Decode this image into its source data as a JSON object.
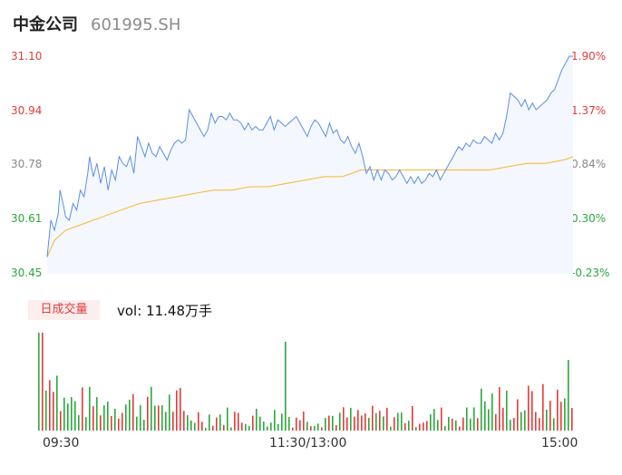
{
  "header": {
    "name": "中金公司",
    "code": "601995.SH"
  },
  "axis": {
    "price_labels": [
      "31.10",
      "30.94",
      "30.78",
      "30.61",
      "30.45"
    ],
    "pct_labels": [
      "1.90%",
      "1.37%",
      "0.84%",
      "0.30%",
      "-0.23%"
    ]
  },
  "volume": {
    "tab_label": "日成交量",
    "info": "vol: 11.48万手"
  },
  "time_labels": [
    "09:30",
    "11:30/13:00",
    "15:00"
  ],
  "colors": {
    "price_line": "#5b8ee6",
    "avg_line": "#f5b731",
    "up": "#e23b3b",
    "down": "#2aa83c",
    "neutral": "#888888",
    "area_fill": "#f4f7fd"
  },
  "chart_data": {
    "type": "line",
    "ylim": [
      30.45,
      31.1
    ],
    "pct_range": [
      -0.23,
      1.9
    ],
    "price_series": [
      [
        0,
        30.5
      ],
      [
        2,
        30.61
      ],
      [
        4,
        30.58
      ],
      [
        6,
        30.63
      ],
      [
        7,
        30.7
      ],
      [
        9,
        30.65
      ],
      [
        10,
        30.62
      ],
      [
        12,
        30.61
      ],
      [
        14,
        30.66
      ],
      [
        16,
        30.64
      ],
      [
        18,
        30.7
      ],
      [
        20,
        30.68
      ],
      [
        22,
        30.75
      ],
      [
        23,
        30.8
      ],
      [
        25,
        30.74
      ],
      [
        27,
        30.78
      ],
      [
        29,
        30.72
      ],
      [
        31,
        30.77
      ],
      [
        33,
        30.7
      ],
      [
        35,
        30.76
      ],
      [
        37,
        30.73
      ],
      [
        39,
        30.8
      ],
      [
        41,
        30.78
      ],
      [
        43,
        30.77
      ],
      [
        45,
        30.8
      ],
      [
        47,
        30.75
      ],
      [
        49,
        30.86
      ],
      [
        51,
        30.83
      ],
      [
        53,
        30.8
      ],
      [
        55,
        30.84
      ],
      [
        57,
        30.81
      ],
      [
        59,
        30.8
      ],
      [
        61,
        30.83
      ],
      [
        63,
        30.81
      ],
      [
        65,
        30.79
      ],
      [
        67,
        30.82
      ],
      [
        69,
        30.84
      ],
      [
        71,
        30.85
      ],
      [
        73,
        30.84
      ],
      [
        75,
        30.85
      ],
      [
        77,
        30.94
      ],
      [
        79,
        30.92
      ],
      [
        81,
        30.9
      ],
      [
        83,
        30.88
      ],
      [
        85,
        30.86
      ],
      [
        87,
        30.88
      ],
      [
        89,
        30.93
      ],
      [
        91,
        30.9
      ],
      [
        93,
        30.92
      ],
      [
        95,
        30.92
      ],
      [
        97,
        30.91
      ],
      [
        99,
        30.93
      ],
      [
        101,
        30.91
      ],
      [
        103,
        30.91
      ],
      [
        105,
        30.9
      ],
      [
        107,
        30.88
      ],
      [
        109,
        30.9
      ],
      [
        111,
        30.88
      ],
      [
        113,
        30.89
      ],
      [
        115,
        30.88
      ],
      [
        117,
        30.88
      ],
      [
        119,
        30.9
      ],
      [
        121,
        30.92
      ],
      [
        123,
        30.88
      ],
      [
        125,
        30.91
      ],
      [
        127,
        30.9
      ],
      [
        129,
        30.89
      ],
      [
        131,
        30.9
      ],
      [
        133,
        30.91
      ],
      [
        135,
        30.92
      ],
      [
        137,
        30.9
      ],
      [
        139,
        30.88
      ],
      [
        141,
        30.86
      ],
      [
        143,
        30.89
      ],
      [
        145,
        30.91
      ],
      [
        147,
        30.9
      ],
      [
        149,
        30.88
      ],
      [
        151,
        30.86
      ],
      [
        153,
        30.9
      ],
      [
        155,
        30.87
      ],
      [
        157,
        30.88
      ],
      [
        159,
        30.85
      ],
      [
        161,
        30.84
      ],
      [
        163,
        30.86
      ],
      [
        165,
        30.83
      ],
      [
        167,
        30.81
      ],
      [
        169,
        30.84
      ],
      [
        171,
        30.8
      ],
      [
        173,
        30.75
      ],
      [
        175,
        30.77
      ],
      [
        177,
        30.73
      ],
      [
        179,
        30.76
      ],
      [
        181,
        30.73
      ],
      [
        183,
        30.76
      ],
      [
        185,
        30.75
      ],
      [
        187,
        30.73
      ],
      [
        189,
        30.74
      ],
      [
        191,
        30.76
      ],
      [
        193,
        30.74
      ],
      [
        195,
        30.72
      ],
      [
        197,
        30.74
      ],
      [
        199,
        30.72
      ],
      [
        201,
        30.74
      ],
      [
        203,
        30.72
      ],
      [
        205,
        30.73
      ],
      [
        207,
        30.75
      ],
      [
        209,
        30.74
      ],
      [
        211,
        30.76
      ],
      [
        213,
        30.73
      ],
      [
        215,
        30.75
      ],
      [
        217,
        30.77
      ],
      [
        219,
        30.79
      ],
      [
        221,
        30.81
      ],
      [
        223,
        30.83
      ],
      [
        225,
        30.82
      ],
      [
        227,
        30.84
      ],
      [
        229,
        30.83
      ],
      [
        231,
        30.85
      ],
      [
        233,
        30.84
      ],
      [
        235,
        30.84
      ],
      [
        237,
        30.86
      ],
      [
        239,
        30.85
      ],
      [
        241,
        30.84
      ],
      [
        243,
        30.87
      ],
      [
        245,
        30.85
      ],
      [
        247,
        30.87
      ],
      [
        249,
        30.92
      ],
      [
        251,
        30.99
      ],
      [
        253,
        30.98
      ],
      [
        255,
        30.97
      ],
      [
        257,
        30.95
      ],
      [
        259,
        30.97
      ],
      [
        261,
        30.94
      ],
      [
        263,
        30.96
      ],
      [
        265,
        30.94
      ],
      [
        267,
        30.95
      ],
      [
        269,
        30.96
      ],
      [
        271,
        30.97
      ],
      [
        273,
        30.99
      ],
      [
        275,
        31.0
      ],
      [
        277,
        31.03
      ],
      [
        279,
        31.06
      ],
      [
        281,
        31.08
      ],
      [
        283,
        31.1
      ],
      [
        285,
        31.1
      ]
    ],
    "avg_series": [
      [
        0,
        30.5
      ],
      [
        4,
        30.55
      ],
      [
        10,
        30.58
      ],
      [
        20,
        30.6
      ],
      [
        30,
        30.62
      ],
      [
        40,
        30.64
      ],
      [
        50,
        30.66
      ],
      [
        60,
        30.67
      ],
      [
        70,
        30.68
      ],
      [
        80,
        30.69
      ],
      [
        90,
        30.7
      ],
      [
        100,
        30.7
      ],
      [
        110,
        30.71
      ],
      [
        120,
        30.71
      ],
      [
        130,
        30.72
      ],
      [
        140,
        30.73
      ],
      [
        150,
        30.74
      ],
      [
        160,
        30.74
      ],
      [
        170,
        30.76
      ],
      [
        180,
        30.76
      ],
      [
        190,
        30.76
      ],
      [
        200,
        30.76
      ],
      [
        210,
        30.76
      ],
      [
        220,
        30.76
      ],
      [
        230,
        30.76
      ],
      [
        240,
        30.76
      ],
      [
        250,
        30.77
      ],
      [
        260,
        30.78
      ],
      [
        270,
        30.78
      ],
      [
        280,
        30.79
      ],
      [
        285,
        30.8
      ]
    ]
  }
}
